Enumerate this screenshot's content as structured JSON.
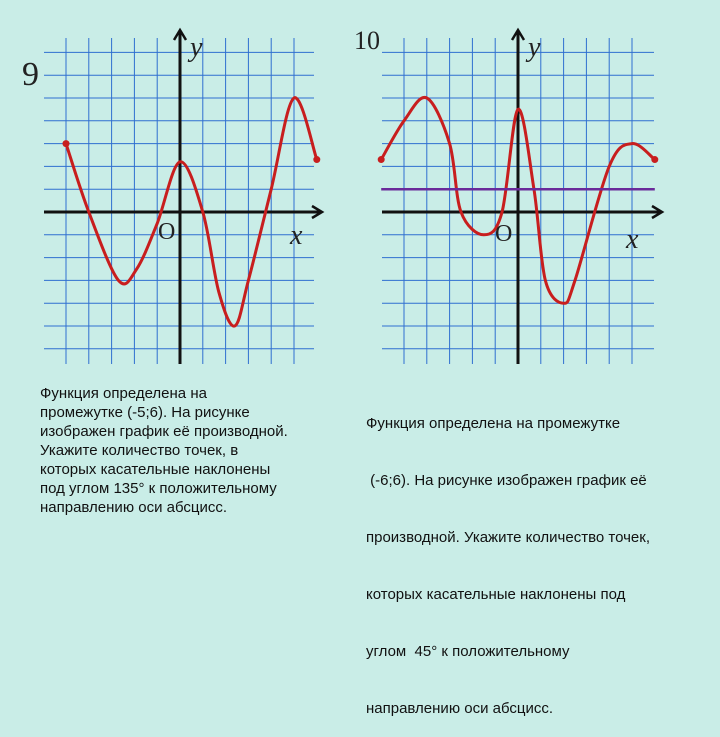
{
  "slide": {
    "background": "#c9ede7",
    "grid_color": "#2f6fd0",
    "curve_color": "#c81e1e",
    "line_color": "#6a2a9a"
  },
  "left_task": {
    "number": "9",
    "axis_y": "y",
    "axis_x": "x",
    "origin": "O",
    "caption": [
      "Функция определена на",
      "промежутке (-5;6). На рисунке",
      "изображен график её производной.",
      "Укажите количество точек, в",
      "которых касательные наклонены",
      "под углом 135° к положительному",
      "направлению оси абсцисс."
    ]
  },
  "right_task": {
    "number": "10",
    "axis_y": "y",
    "axis_x": "x",
    "origin": "O",
    "caption": [
      "Функция определена на промежутке",
      " (-6;6). На рисунке изображен график её",
      "производной. Укажите количество точек,",
      "которых касательные наклонены под",
      "углом  45° к положительному",
      "направлению оси абсцисс."
    ]
  },
  "chart_data": [
    {
      "type": "line",
      "series": [
        {
          "x": [
            -5,
            -4,
            -2.7,
            -1.9,
            -1,
            0,
            1,
            1.7,
            2.4,
            3,
            4,
            5,
            6
          ],
          "y": [
            3,
            0,
            -3,
            -2.5,
            -0.5,
            2.2,
            0,
            -3.5,
            -5,
            -3,
            1,
            5,
            2.3
          ]
        }
      ],
      "xlim": [
        -6,
        6
      ],
      "ylim": [
        -7,
        7
      ],
      "grid": true,
      "endpoints": [
        [
          -5,
          3
        ],
        [
          6,
          2.3
        ]
      ]
    },
    {
      "type": "line",
      "series": [
        {
          "x": [
            -6,
            -5,
            -4,
            -3,
            -2.5,
            -1.5,
            -0.7,
            0,
            0.7,
            1.2,
            2,
            2.5,
            4,
            5,
            6
          ],
          "y": [
            2.3,
            4,
            5,
            3,
            0,
            -1,
            0,
            4.5,
            1,
            -3,
            -4,
            -3,
            2,
            3,
            2.3
          ]
        },
        {
          "x": [
            -6,
            6
          ],
          "y": [
            1,
            1
          ]
        }
      ],
      "xlim": [
        -6,
        6
      ],
      "ylim": [
        -7,
        7
      ],
      "grid": true,
      "endpoints": [
        [
          -6,
          2.3
        ],
        [
          6,
          2.3
        ]
      ]
    }
  ]
}
